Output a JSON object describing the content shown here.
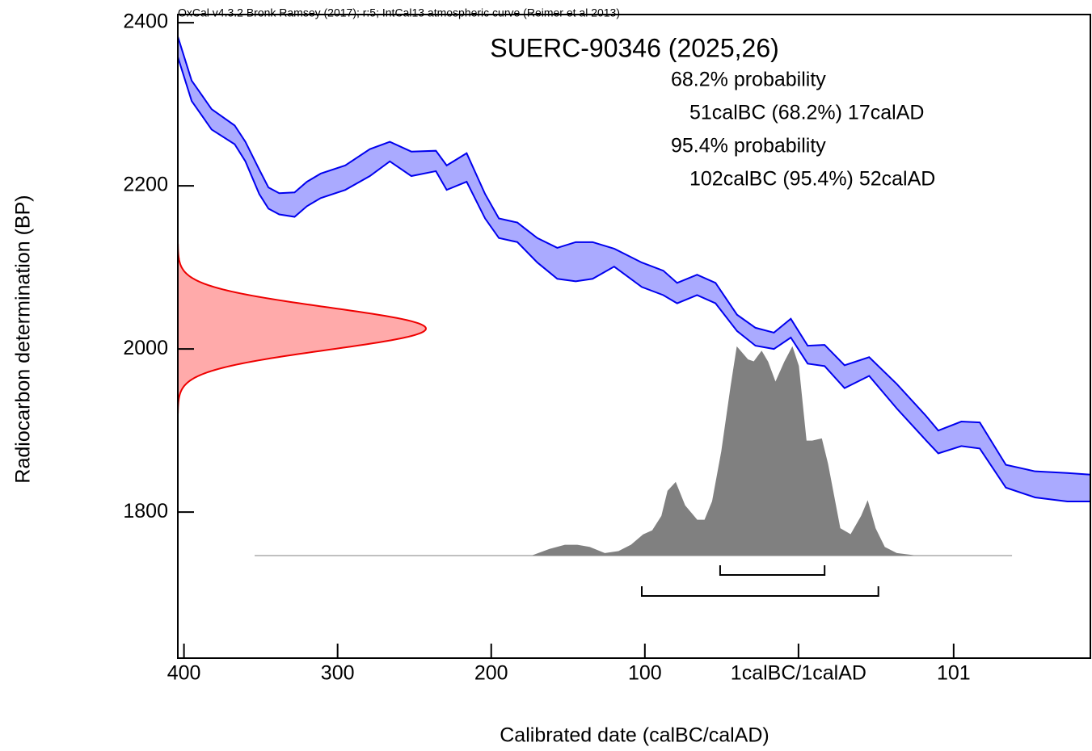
{
  "chart_data": {
    "type": "calibration",
    "header": "OxCal v4.3.2 Bronk Ramsey (2017); r:5; IntCal13 atmospheric curve (Reimer et al 2013)",
    "title": "SUERC-90346 (2025,26)",
    "xlabel": "Calibrated date (calBC/calAD)",
    "ylabel": "Radiocarbon determination (BP)",
    "xlim": [
      -404,
      190
    ],
    "ylim": [
      1621,
      2410
    ],
    "xticks": [
      {
        "value": -400,
        "label": "400"
      },
      {
        "value": -300,
        "label": "300"
      },
      {
        "value": -200,
        "label": "200"
      },
      {
        "value": -100,
        "label": "100"
      },
      {
        "value": 0,
        "label": "1calBC/1calAD"
      },
      101
    ],
    "yticks": [
      1800,
      2000,
      2200,
      2400
    ],
    "curve": {
      "color": "#0000ee",
      "fill": "#aaaaff",
      "x": [
        -404,
        -395,
        -382,
        -367,
        -360,
        -351,
        -345,
        -338,
        -328,
        -320,
        -311,
        -295,
        -279,
        -266,
        -252,
        -236,
        -229,
        -216,
        -204,
        -195,
        -183,
        -170,
        -157,
        -145,
        -134,
        -120,
        -102,
        -88,
        -79,
        -66,
        -54,
        -40,
        -28,
        -16,
        -5,
        6,
        17,
        30,
        46,
        64,
        83,
        91,
        106,
        118,
        135,
        154,
        175,
        190
      ],
      "upper": [
        2383,
        2329,
        2294,
        2274,
        2254,
        2220,
        2198,
        2191,
        2192,
        2205,
        2215,
        2225,
        2245,
        2254,
        2242,
        2243,
        2225,
        2240,
        2190,
        2160,
        2155,
        2136,
        2124,
        2131,
        2131,
        2123,
        2106,
        2096,
        2081,
        2091,
        2081,
        2042,
        2026,
        2020,
        2037,
        2004,
        2005,
        1980,
        1990,
        1957,
        1918,
        1900,
        1911,
        1910,
        1858,
        1850,
        1848,
        1846
      ],
      "lower": [
        2358,
        2304,
        2269,
        2251,
        2230,
        2190,
        2172,
        2165,
        2162,
        2175,
        2185,
        2195,
        2212,
        2230,
        2212,
        2218,
        2195,
        2205,
        2160,
        2136,
        2131,
        2106,
        2086,
        2083,
        2086,
        2101,
        2076,
        2066,
        2056,
        2066,
        2056,
        2022,
        2004,
        2000,
        2014,
        1982,
        1979,
        1952,
        1967,
        1927,
        1888,
        1872,
        1881,
        1878,
        1830,
        1818,
        1813,
        1813
      ]
    },
    "measurement": {
      "value": 2025,
      "error": 26,
      "color": "#ee0000",
      "fill": "#ffaaaa"
    },
    "posterior": {
      "color": "#808080",
      "x": [
        -354,
        -173,
        -162,
        -152,
        -144,
        -136,
        -126,
        -117,
        -109,
        -101,
        -95,
        -89,
        -85,
        -80,
        -74,
        -66,
        -61,
        -56,
        -50,
        -44,
        -40,
        -33,
        -29,
        -24,
        -20,
        -15,
        -9,
        -4,
        0,
        5,
        9,
        15,
        19,
        27,
        34,
        41,
        45,
        50,
        56,
        64,
        75,
        139
      ],
      "density": [
        0,
        0,
        0.03,
        0.05,
        0.05,
        0.04,
        0.01,
        0.02,
        0.05,
        0.1,
        0.12,
        0.19,
        0.31,
        0.35,
        0.24,
        0.17,
        0.17,
        0.26,
        0.5,
        0.81,
        1.0,
        0.94,
        0.93,
        0.98,
        0.93,
        0.83,
        0.93,
        1.0,
        0.91,
        0.55,
        0.55,
        0.56,
        0.44,
        0.13,
        0.1,
        0.19,
        0.26,
        0.13,
        0.04,
        0.01,
        0,
        0
      ]
    },
    "ranges": [
      {
        "label": "68.2% probability",
        "text": "51calBC (68.2%) 17calAD",
        "from": -51,
        "to": 17
      },
      {
        "label": "95.4% probability",
        "text": "102calBC (95.4%) 52calAD",
        "from": -102,
        "to": 52
      }
    ]
  }
}
